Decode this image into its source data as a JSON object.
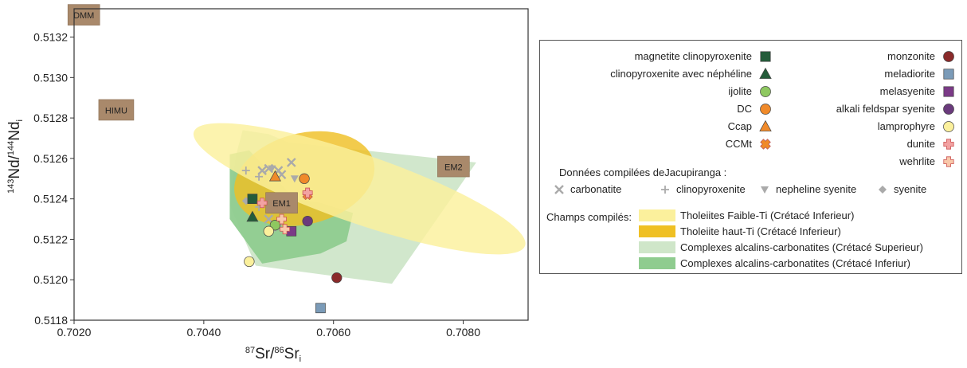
{
  "chart_data": {
    "type": "scatter",
    "xlabel": "87Sr/86Sr(i)",
    "ylabel": "143Nd/144Nd(i)",
    "xlim": [
      0.702,
      0.709
    ],
    "ylim": [
      0.5118,
      0.51334
    ],
    "x_ticks": [
      "0.7020",
      "0.7040",
      "0.7060",
      "0.7080"
    ],
    "y_ticks": [
      "0.5118",
      "0.5120",
      "0.5122",
      "0.5124",
      "0.5126",
      "0.5128",
      "0.5130",
      "0.5132"
    ],
    "mantle_components": [
      {
        "label": "DMM",
        "x": 0.70215,
        "y": 0.51331
      },
      {
        "label": "HIMU",
        "x": 0.70265,
        "y": 0.51284
      },
      {
        "label": "EM1",
        "x": 0.7052,
        "y": 0.51238
      },
      {
        "label": "EM2",
        "x": 0.70785,
        "y": 0.51256
      }
    ],
    "fields": [
      {
        "name": "Complexes alcalins-carbonatites (Crétacé Superieur)",
        "color": "#cfe6c9",
        "polygon": [
          [
            0.7046,
            0.51274
          ],
          [
            0.705,
            0.51272
          ],
          [
            0.7053,
            0.51268
          ],
          [
            0.7082,
            0.51258
          ],
          [
            0.7069,
            0.51198
          ],
          [
            0.7048,
            0.51207
          ],
          [
            0.7044,
            0.51237
          ],
          [
            0.7045,
            0.51262
          ]
        ]
      },
      {
        "name": "Complexes alcalins-carbonatites (Crétacé Inferiur)",
        "color": "#8fcc8f",
        "polygon": [
          [
            0.7044,
            0.51262
          ],
          [
            0.7047,
            0.51264
          ],
          [
            0.7054,
            0.5124
          ],
          [
            0.7058,
            0.51238
          ],
          [
            0.7063,
            0.51233
          ],
          [
            0.7062,
            0.51219
          ],
          [
            0.7058,
            0.51213
          ],
          [
            0.7049,
            0.51208
          ],
          [
            0.7044,
            0.5123
          ]
        ]
      },
      {
        "name": "Tholeiite haut-Ti (Crétacé Inferieur)",
        "color": "#efc024",
        "ellipse": {
          "cx": 0.70555,
          "cy": 0.5125,
          "rx": 0.0011,
          "ry": 0.000225,
          "angle": -14
        }
      },
      {
        "name": "Tholeiites Faible-Ti (Crétacé Inferieur)",
        "color": "#fbf09c",
        "ellipse": {
          "cx": 0.7064,
          "cy": 0.51245,
          "rx": 0.0027,
          "ry": 0.00017,
          "angle": 19
        }
      }
    ],
    "series": [
      {
        "name": "magnetite clinopyroxenite",
        "symbol": "square",
        "color": "#245c3a",
        "points": [
          [
            0.70475,
            0.5124
          ]
        ]
      },
      {
        "name": "clinopyroxenite avec néphéline",
        "symbol": "triangle",
        "color": "#245c3a",
        "points": [
          [
            0.70475,
            0.51231
          ]
        ]
      },
      {
        "name": "ijolite",
        "symbol": "circle",
        "color": "#8ec860",
        "points": [
          [
            0.7051,
            0.51227
          ]
        ]
      },
      {
        "name": "DC",
        "symbol": "circle",
        "color": "#f08a2a",
        "points": [
          [
            0.70555,
            0.5125
          ]
        ]
      },
      {
        "name": "Ccap",
        "symbol": "triangle",
        "color": "#f08a2a",
        "points": [
          [
            0.7051,
            0.51251
          ]
        ]
      },
      {
        "name": "CCMt",
        "symbol": "star",
        "color": "#f08a2a",
        "points": [
          [
            0.7056,
            0.51242
          ]
        ]
      },
      {
        "name": "monzonite",
        "symbol": "circle",
        "color": "#8a2a2a",
        "points": [
          [
            0.70605,
            0.51201
          ]
        ]
      },
      {
        "name": "meladiorite",
        "symbol": "square",
        "color": "#7b9bb8",
        "points": [
          [
            0.7058,
            0.51186
          ]
        ]
      },
      {
        "name": "melasyenite",
        "symbol": "square",
        "color": "#7b3a87",
        "points": [
          [
            0.70535,
            0.51224
          ]
        ]
      },
      {
        "name": "alkali feldspar syenite",
        "symbol": "circle",
        "color": "#6a3a7c",
        "points": [
          [
            0.7056,
            0.51229
          ]
        ]
      },
      {
        "name": "lamprophyre",
        "symbol": "circle",
        "color": "#fbf09c",
        "points": [
          [
            0.7047,
            0.51209
          ],
          [
            0.705,
            0.51224
          ]
        ]
      },
      {
        "name": "dunite",
        "symbol": "plus",
        "color": "#f2a2a2",
        "points": [
          [
            0.7049,
            0.51238
          ],
          [
            0.7056,
            0.51243
          ]
        ]
      },
      {
        "name": "wehrlite",
        "symbol": "plus",
        "color": "#f8c8aa",
        "points": [
          [
            0.7052,
            0.5123
          ],
          [
            0.70525,
            0.51225
          ]
        ]
      }
    ],
    "compiled": [
      {
        "name": "carbonatite",
        "symbol": "x",
        "color": "#aaaaaa",
        "points": [
          [
            0.7049,
            0.51254
          ],
          [
            0.705,
            0.51255
          ],
          [
            0.70515,
            0.51254
          ],
          [
            0.70535,
            0.51258
          ],
          [
            0.7052,
            0.51252
          ],
          [
            0.705,
            0.5123
          ],
          [
            0.70515,
            0.51226
          ]
        ]
      },
      {
        "name": "clinopyroxenite",
        "symbol": "cross",
        "color": "#aaaaaa",
        "points": [
          [
            0.70465,
            0.51254
          ],
          [
            0.70485,
            0.51251
          ],
          [
            0.70475,
            0.5124
          ],
          [
            0.70485,
            0.51236
          ]
        ]
      },
      {
        "name": "nepheline syenite",
        "symbol": "tri-down",
        "color": "#aaaaaa",
        "points": [
          [
            0.70505,
            0.51255
          ],
          [
            0.7054,
            0.5125
          ]
        ]
      },
      {
        "name": "syenite",
        "symbol": "diamond",
        "color": "#aaaaaa",
        "points": [
          [
            0.70465,
            0.51239
          ],
          [
            0.7051,
            0.51226
          ]
        ]
      }
    ]
  },
  "legend": {
    "compiled_title": "Données compilées deJacupiranga :",
    "fields_title": "Champs compilés:"
  }
}
